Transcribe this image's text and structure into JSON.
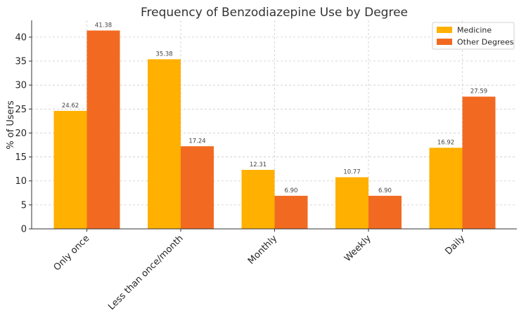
{
  "chart_data": {
    "type": "bar",
    "title": "Frequency of Benzodiazepine Use by Degree",
    "ylabel": "% of Users",
    "xlabel": "",
    "categories": [
      "Only once",
      "Less than once/month",
      "Monthly",
      "Weekly",
      "Daily"
    ],
    "series": [
      {
        "name": "Medicine",
        "color": "#ffb000",
        "values": [
          24.62,
          35.38,
          12.31,
          10.77,
          16.92
        ]
      },
      {
        "name": "Other Degrees",
        "color": "#f26a21",
        "values": [
          41.38,
          17.24,
          6.9,
          6.9,
          27.59
        ]
      }
    ],
    "ylim": [
      0,
      43.5
    ],
    "yticks": [
      0,
      5,
      10,
      15,
      20,
      25,
      30,
      35,
      40
    ],
    "grid": true,
    "legend_position": "top-right"
  }
}
